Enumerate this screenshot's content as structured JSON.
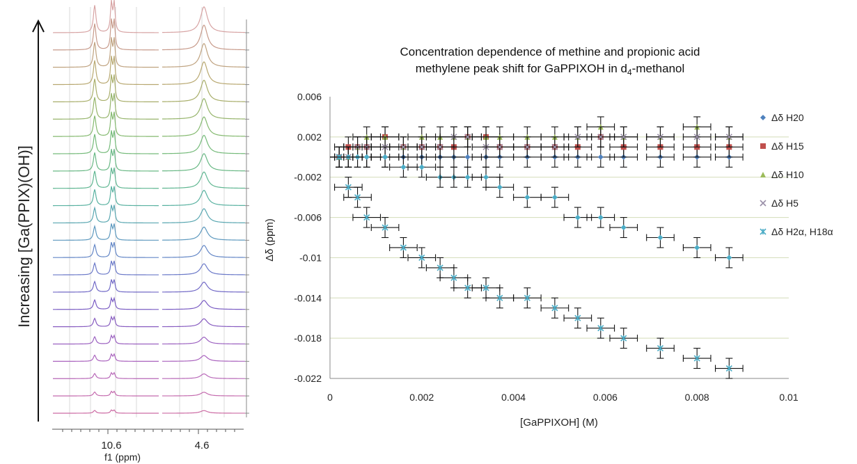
{
  "nmr_panel": {
    "arrow_label": "Increasing [Ga(PPIX)(OH)]",
    "xlabel": "f1 (ppm)",
    "tick_labels": [
      "10.6",
      "4.6"
    ],
    "trace_count": 23,
    "trace_colors": [
      "#d7a3a3",
      "#c79a8a",
      "#bfa27f",
      "#b8a870",
      "#a8ae6a",
      "#95b46a",
      "#84b96f",
      "#74ba79",
      "#68b884",
      "#5fb691",
      "#58b1a0",
      "#58a6b0",
      "#5c98be",
      "#6386c6",
      "#6a78c8",
      "#7068c6",
      "#7a5cc3",
      "#875cc0",
      "#9b60c0",
      "#aa63be",
      "#b868b8",
      "#c46aae",
      "#cc6aa3"
    ]
  },
  "chart_data": {
    "type": "scatter",
    "title_line1": "Concentration dependence of methine and propionic acid",
    "title_line2_prefix": "methylene peak shift for GaPPIXOH in d",
    "title_line2_sub": "4",
    "title_line2_suffix": "-methanol",
    "xlabel": "[GaPPIXOH] (M)",
    "ylabel": "Δδ (ppm)",
    "xlim": [
      0,
      0.01
    ],
    "ylim": [
      -0.022,
      0.006
    ],
    "x_ticks": [
      0,
      0.002,
      0.004,
      0.006,
      0.008,
      0.01
    ],
    "x_tick_labels": [
      "0",
      "0.002",
      "0.004",
      "0.006",
      "0.008",
      "0.01"
    ],
    "y_ticks": [
      0.006,
      0.002,
      -0.002,
      -0.006,
      -0.01,
      -0.014,
      -0.018,
      -0.022
    ],
    "y_tick_labels": [
      "0.006",
      "0.002",
      "-0.002",
      "-0.006",
      "-0.01",
      "-0.014",
      "-0.018",
      "-0.022"
    ],
    "x_error": 0.0003,
    "y_error": 0.001,
    "legend_position": "right",
    "series": [
      {
        "name": "Δδ H20",
        "color": "#4f81bd",
        "marker": "diamond",
        "x": [
          0.0002,
          0.0004,
          0.0006,
          0.0008,
          0.0012,
          0.0016,
          0.002,
          0.0024,
          0.0027,
          0.003,
          0.0034,
          0.0037,
          0.0043,
          0.0049,
          0.0054,
          0.0059,
          0.0064,
          0.0072,
          0.008,
          0.0087
        ],
        "y": [
          0,
          0,
          0,
          0,
          0,
          0,
          0,
          0,
          0,
          0,
          0,
          0,
          0,
          0,
          0,
          0,
          0,
          0,
          0,
          0
        ]
      },
      {
        "name": "Δδ H15",
        "color": "#c0504d",
        "marker": "square",
        "x": [
          0.0002,
          0.0004,
          0.0006,
          0.0008,
          0.0012,
          0.0016,
          0.002,
          0.0024,
          0.0027,
          0.003,
          0.0034,
          0.0037,
          0.0043,
          0.0049,
          0.0054,
          0.0059,
          0.0064,
          0.0072,
          0.008,
          0.0087
        ],
        "y": [
          0,
          0.001,
          0.001,
          0.001,
          0.002,
          0.001,
          0.001,
          0.001,
          0.001,
          0.002,
          0.002,
          0.001,
          0.001,
          0.001,
          0.001,
          0.002,
          0.001,
          0.001,
          0.001,
          0.001
        ]
      },
      {
        "name": "Δδ H10",
        "color": "#9bbb59",
        "marker": "triangle",
        "x": [
          0.0002,
          0.0004,
          0.0006,
          0.0008,
          0.0012,
          0.0016,
          0.002,
          0.0024,
          0.0027,
          0.003,
          0.0034,
          0.0037,
          0.0043,
          0.0049,
          0.0054,
          0.0059,
          0.0064,
          0.0072,
          0.008,
          0.0087
        ],
        "y": [
          0,
          0,
          0.001,
          0.002,
          0.002,
          0.001,
          0.002,
          0.002,
          0.002,
          0.002,
          0.002,
          0.002,
          0.002,
          0.002,
          0.002,
          0.003,
          0.002,
          0.002,
          0.003,
          0.002
        ]
      },
      {
        "name": "Δδ H5",
        "color": "#9a8fa8",
        "marker": "x",
        "x": [
          0.0002,
          0.0004,
          0.0006,
          0.0008,
          0.0012,
          0.0016,
          0.002,
          0.0024,
          0.0027,
          0.003,
          0.0034,
          0.0037,
          0.0043,
          0.0049,
          0.0054,
          0.0059,
          0.0064,
          0.0072,
          0.008,
          0.0087
        ],
        "y": [
          0,
          0,
          0.001,
          0.001,
          0.001,
          0.001,
          0.001,
          0.001,
          0.002,
          0.002,
          0.001,
          0.001,
          0.001,
          0.001,
          0.002,
          0.002,
          0.002,
          0.002,
          0.002,
          0.002
        ]
      },
      {
        "name": "Δδ H2α, H18α",
        "color": "#4bacc6",
        "marker": "star",
        "x": [
          0.0002,
          0.0004,
          0.0006,
          0.0008,
          0.0012,
          0.0016,
          0.002,
          0.0024,
          0.0027,
          0.003,
          0.0034,
          0.0037,
          0.0043,
          0.0049,
          0.0054,
          0.0059,
          0.0064,
          0.0072,
          0.008,
          0.0087
        ],
        "y": [
          0,
          -0.003,
          -0.004,
          -0.006,
          -0.007,
          -0.009,
          -0.01,
          -0.011,
          -0.012,
          -0.013,
          -0.013,
          -0.014,
          -0.014,
          -0.015,
          -0.016,
          -0.017,
          -0.018,
          -0.019,
          -0.02,
          -0.021
        ]
      },
      {
        "name": "",
        "color": "#4bacc6",
        "marker": "diamond",
        "x": [
          0.0002,
          0.0004,
          0.0006,
          0.0008,
          0.0012,
          0.0016,
          0.002,
          0.0024,
          0.0027,
          0.003,
          0.0034,
          0.0037,
          0.0043,
          0.0049,
          0.0054,
          0.0059,
          0.0064,
          0.0072,
          0.008,
          0.0087
        ],
        "y": [
          0,
          0,
          0,
          0,
          0,
          -0.001,
          -0.001,
          -0.002,
          -0.002,
          -0.002,
          -0.002,
          -0.003,
          -0.004,
          -0.004,
          -0.006,
          -0.006,
          -0.007,
          -0.008,
          -0.009,
          -0.01
        ]
      }
    ]
  }
}
